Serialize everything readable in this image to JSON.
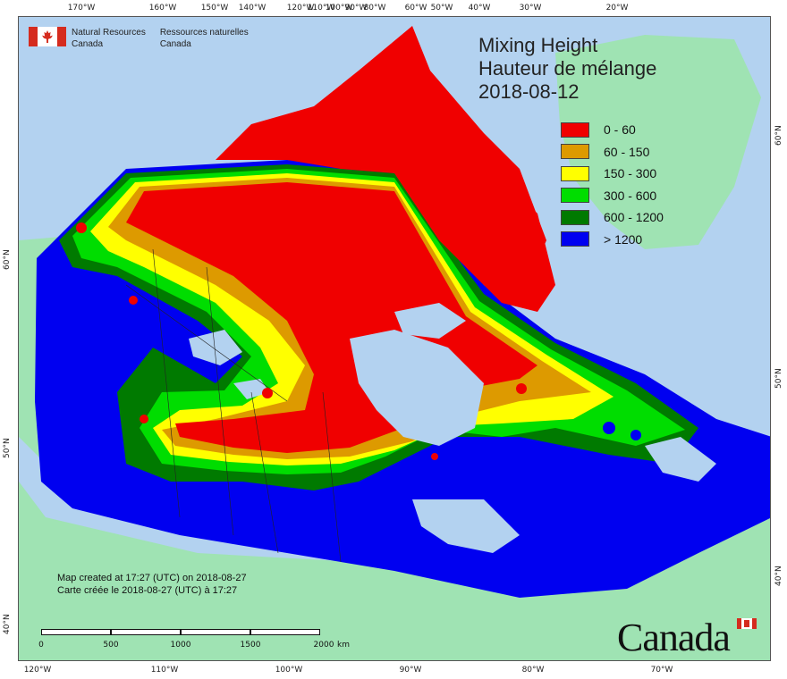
{
  "title": {
    "line1": "Mixing Height",
    "line2": "Hauteur de mélange",
    "date": "2018-08-12"
  },
  "agency": {
    "en_line1": "Natural Resources",
    "en_line2": "Canada",
    "fr_line1": "Ressources naturelles",
    "fr_line2": "Canada"
  },
  "legend": [
    {
      "label": "0 - 60",
      "color": "#f00000"
    },
    {
      "label": "60 - 150",
      "color": "#dd9a00"
    },
    {
      "label": "150 - 300",
      "color": "#ffff00"
    },
    {
      "label": "300 - 600",
      "color": "#00dd00"
    },
    {
      "label": "600 - 1200",
      "color": "#007a00"
    },
    {
      "label": "> 1200",
      "color": "#0000f0"
    }
  ],
  "credit": {
    "en": "Map created at 17:27 (UTC) on 2018-08-27",
    "fr": "Carte créée le 2018-08-27 (UTC) à 17:27"
  },
  "scale": {
    "labels": [
      "0",
      "500",
      "1000",
      "1500",
      "2000",
      "km"
    ]
  },
  "wordmark": "Canada",
  "graticule": {
    "top": [
      "170°W",
      "160°W",
      "150°W",
      "140°W",
      "120°W",
      "110°W",
      "100°W",
      "90°W",
      "80°W",
      "60°W",
      "50°W",
      "40°W",
      "30°W",
      "20°W"
    ],
    "bottom": [
      "120°W",
      "110°W",
      "100°W",
      "90°W",
      "80°W",
      "70°W"
    ],
    "left": [
      "60°N",
      "50°N",
      "40°N"
    ],
    "right": [
      "60°N",
      "50°N",
      "40°N"
    ]
  },
  "colors": {
    "ocean": "#b3d2f0",
    "land_outside": "#9fe3b3",
    "lakes": "#b3d2f0"
  }
}
